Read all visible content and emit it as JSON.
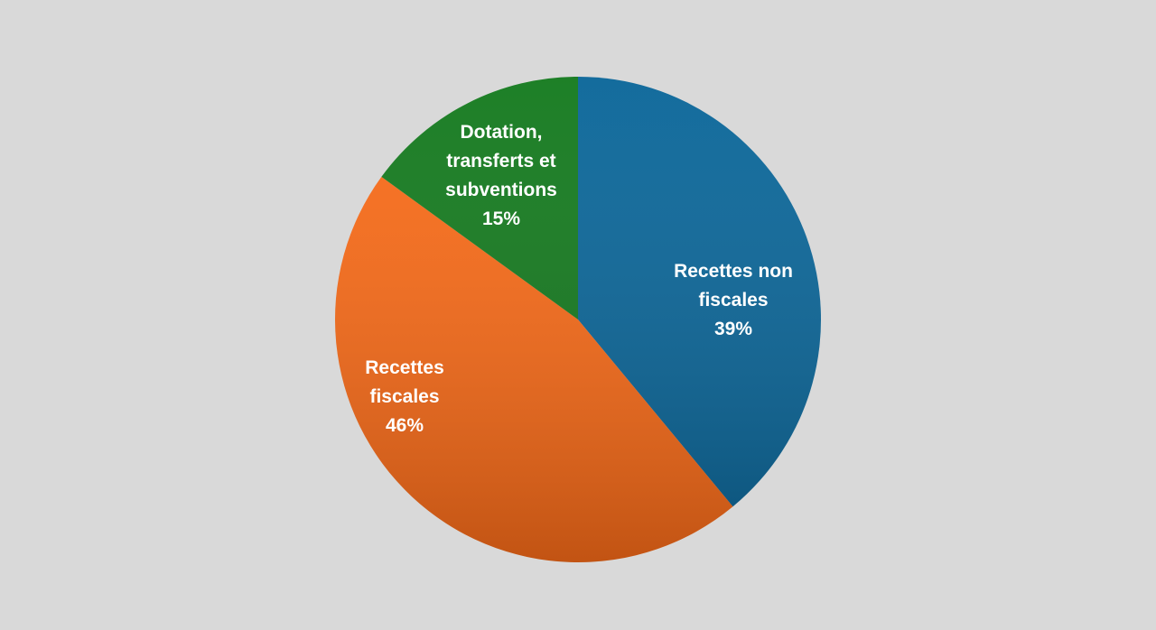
{
  "chart_data": {
    "type": "pie",
    "categories": [
      "Recettes non fiscales",
      "Recettes fiscales",
      "Dotation, transferts et subventions"
    ],
    "values": [
      39,
      46,
      15
    ],
    "value_labels": [
      "39%",
      "46%",
      "15%"
    ],
    "colors": [
      "#0a6699",
      "#f96b18",
      "#147a1e"
    ]
  }
}
